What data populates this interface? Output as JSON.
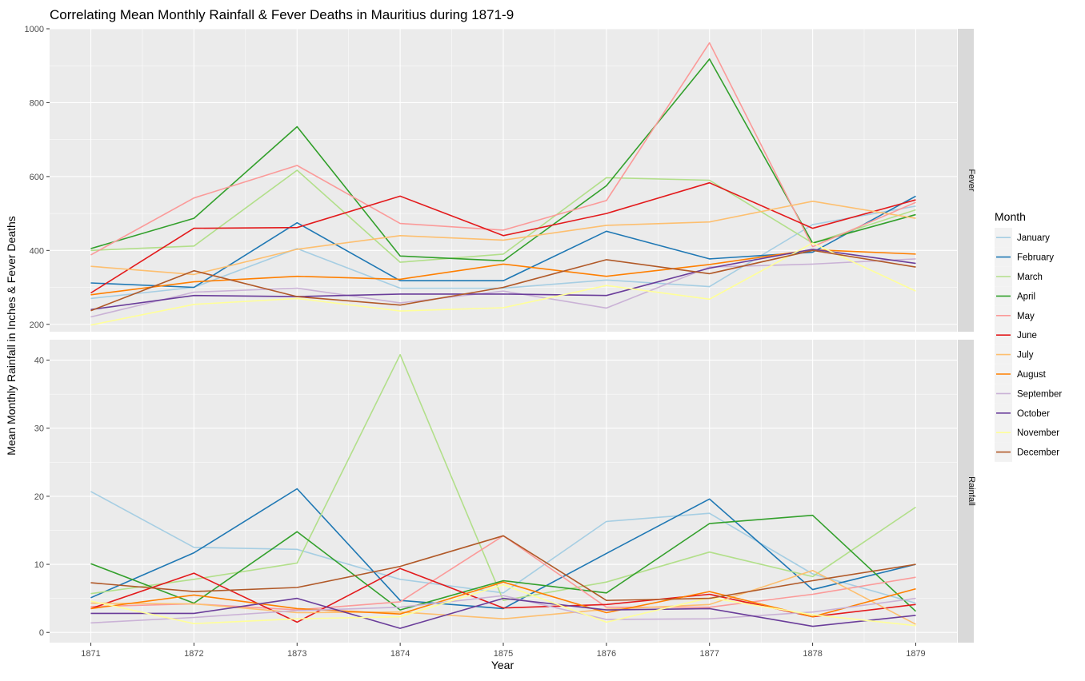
{
  "chart_data": {
    "type": "line",
    "title": "Correlating Mean Monthly Rainfall & Fever Deaths in Mauritius during 1871-9",
    "xlabel": "Year",
    "ylabel": "Mean Monthly Rainfall in Inches & Fever Deaths",
    "x": [
      1871,
      1872,
      1873,
      1874,
      1875,
      1876,
      1877,
      1878,
      1879
    ],
    "legend": {
      "title": "Month",
      "position": "right"
    },
    "grid": true,
    "series_colors": {
      "January": "#A6CEE3",
      "February": "#1F78B4",
      "March": "#B2DF8A",
      "April": "#33A02C",
      "May": "#FB9A99",
      "June": "#E31A1C",
      "July": "#FDBF6F",
      "August": "#FF7F00",
      "September": "#CAB2D6",
      "October": "#6A3D9A",
      "November": "#FFFF99",
      "December": "#B15928"
    },
    "panels": [
      {
        "strip": "Fever",
        "ylim": [
          180,
          1000
        ],
        "yticks": [
          200,
          400,
          600,
          800,
          1000
        ],
        "series": [
          {
            "name": "January",
            "values": [
              270,
              300,
              405,
              298,
              298,
              320,
              302,
              470,
              520
            ]
          },
          {
            "name": "February",
            "values": [
              312,
              300,
              475,
              318,
              318,
              452,
              377,
              395,
              547
            ]
          },
          {
            "name": "March",
            "values": [
              400,
              412,
              617,
              368,
              390,
              597,
              590,
              420,
              510
            ]
          },
          {
            "name": "April",
            "values": [
              405,
              487,
              735,
              385,
              372,
              575,
              918,
              420,
              497
            ]
          },
          {
            "name": "May",
            "values": [
              388,
              542,
              630,
              473,
              455,
              535,
              962,
              410,
              530
            ]
          },
          {
            "name": "June",
            "values": [
              285,
              460,
              462,
              547,
              440,
              500,
              583,
              460,
              537
            ]
          },
          {
            "name": "July",
            "values": [
              357,
              335,
              403,
              440,
              428,
              468,
              477,
              533,
              487
            ]
          },
          {
            "name": "August",
            "values": [
              280,
              315,
              330,
              322,
              363,
              330,
              362,
              402,
              390
            ]
          },
          {
            "name": "September",
            "values": [
              220,
              287,
              298,
              258,
              290,
              244,
              355,
              363,
              377
            ]
          },
          {
            "name": "October",
            "values": [
              240,
              278,
              275,
              282,
              282,
              278,
              352,
              403,
              365
            ]
          },
          {
            "name": "November",
            "values": [
              198,
              254,
              270,
              236,
              245,
              305,
              268,
              420,
              290
            ]
          },
          {
            "name": "December",
            "values": [
              237,
              345,
              275,
              252,
              300,
              375,
              337,
              400,
              355
            ]
          }
        ]
      },
      {
        "strip": "Rainfall",
        "ylim": [
          -1.5,
          43
        ],
        "yticks": [
          0,
          10,
          20,
          30,
          40
        ],
        "series": [
          {
            "name": "January",
            "values": [
              20.7,
              12.5,
              12.2,
              7.8,
              5.8,
              16.3,
              17.5,
              8.6,
              4.3
            ]
          },
          {
            "name": "February",
            "values": [
              5.1,
              11.7,
              21.1,
              4.7,
              3.5,
              11.6,
              19.6,
              6.3,
              10.0
            ]
          },
          {
            "name": "March",
            "values": [
              5.7,
              7.8,
              10.2,
              40.8,
              4.7,
              7.4,
              11.8,
              8.2,
              18.4
            ]
          },
          {
            "name": "April",
            "values": [
              10.1,
              4.3,
              14.8,
              3.3,
              7.6,
              5.8,
              16.0,
              17.2,
              3.1
            ]
          },
          {
            "name": "May",
            "values": [
              3.8,
              4.2,
              3.3,
              4.5,
              14.2,
              3.7,
              3.7,
              5.6,
              8.1
            ]
          },
          {
            "name": "June",
            "values": [
              3.5,
              8.7,
              1.5,
              9.4,
              3.6,
              4.1,
              5.6,
              2.3,
              4.1
            ]
          },
          {
            "name": "July",
            "values": [
              4.3,
              4.2,
              2.9,
              3.0,
              2.0,
              3.4,
              4.1,
              9.1,
              1.2
            ]
          },
          {
            "name": "August",
            "values": [
              3.5,
              5.5,
              3.5,
              2.7,
              7.4,
              2.9,
              6.0,
              2.3,
              6.4
            ]
          },
          {
            "name": "September",
            "values": [
              1.4,
              2.2,
              3.2,
              3.7,
              5.4,
              1.9,
              2.0,
              3.0,
              5.0
            ]
          },
          {
            "name": "October",
            "values": [
              2.8,
              2.8,
              5.0,
              0.6,
              5.0,
              3.3,
              3.5,
              0.9,
              2.5
            ]
          },
          {
            "name": "November",
            "values": [
              4.6,
              1.3,
              2.0,
              2.3,
              7.0,
              1.5,
              5.1,
              2.6,
              1.0
            ]
          },
          {
            "name": "December",
            "values": [
              7.3,
              6.0,
              6.6,
              9.7,
              14.2,
              4.7,
              5.0,
              7.6,
              10.0
            ]
          }
        ]
      }
    ]
  }
}
